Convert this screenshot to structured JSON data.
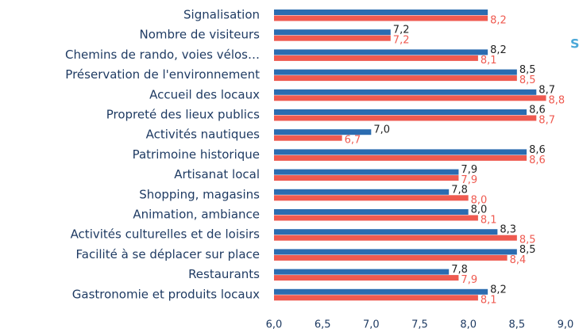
{
  "chart_data": {
    "type": "hbar",
    "categories": [
      "Signalisation",
      "Nombre de visiteurs",
      "Chemins de rando, voies vélos…",
      "Préservation de l'environnement",
      "Accueil des locaux",
      "Propreté des lieux publics",
      "Activités nautiques",
      "Patrimoine historique",
      "Artisanat local",
      "Shopping, magasins",
      "Animation, ambiance",
      "Activités culturelles et de loisirs",
      "Facilité à se déplacer sur place",
      "Restaurants",
      "Gastronomie et produits locaux"
    ],
    "series": [
      {
        "color": "#2b6cb0",
        "label_color": "#222222",
        "values": [
          8.2,
          7.2,
          8.2,
          8.5,
          8.7,
          8.6,
          7.0,
          8.6,
          7.9,
          7.8,
          8.0,
          8.3,
          8.5,
          7.8,
          8.2
        ],
        "value_labels": [
          null,
          "7,2",
          "8,2",
          "8,5",
          "8,7",
          "8,6",
          "7,0",
          "8,6",
          "7,9",
          "7,8",
          "8,0",
          "8,3",
          "8,5",
          "7,8",
          "8,2"
        ]
      },
      {
        "color": "#ef5a50",
        "label_color": "#ef5a50",
        "values": [
          8.2,
          7.2,
          8.1,
          8.5,
          8.8,
          8.7,
          6.7,
          8.6,
          7.9,
          8.0,
          8.1,
          8.5,
          8.4,
          7.9,
          8.1
        ],
        "value_labels": [
          "8,2",
          "7,2",
          "8,1",
          "8,5",
          "8,8",
          "8,7",
          "6,7",
          "8,6",
          "7,9",
          "8,0",
          "8,1",
          "8,5",
          "8,4",
          "7,9",
          "8,1"
        ]
      }
    ],
    "xlim": [
      6,
      9
    ],
    "xticks": [
      {
        "value": 6,
        "label": "6,0"
      },
      {
        "value": 6.5,
        "label": "6,5"
      },
      {
        "value": 7,
        "label": "7,0"
      },
      {
        "value": 7.5,
        "label": "7,5"
      },
      {
        "value": 8,
        "label": "8,0"
      },
      {
        "value": 8.5,
        "label": "8,5"
      },
      {
        "value": 9,
        "label": "9,0"
      }
    ],
    "annotations": [
      "S"
    ]
  }
}
